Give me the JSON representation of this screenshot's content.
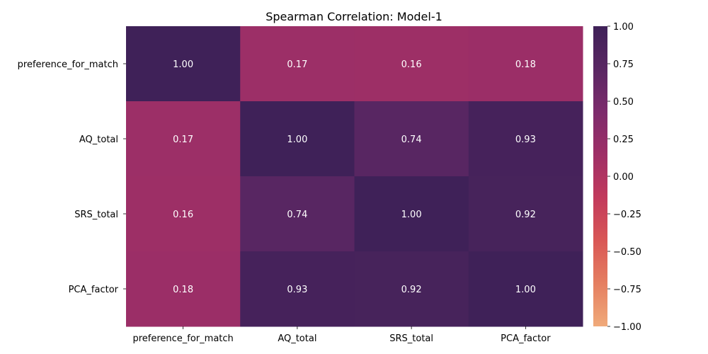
{
  "chart_data": {
    "type": "heatmap",
    "title": "Spearman Correlation: Model-1",
    "rows": [
      "preference_for_match",
      "AQ_total",
      "SRS_total",
      "PCA_factor"
    ],
    "columns": [
      "preference_for_match",
      "AQ_total",
      "SRS_total",
      "PCA_factor"
    ],
    "values": [
      [
        1.0,
        0.17,
        0.16,
        0.18
      ],
      [
        0.17,
        1.0,
        0.74,
        0.93
      ],
      [
        0.16,
        0.74,
        1.0,
        0.92
      ],
      [
        0.18,
        0.93,
        0.92,
        1.0
      ]
    ],
    "value_labels": [
      [
        "1.00",
        "0.17",
        "0.16",
        "0.18"
      ],
      [
        "0.17",
        "1.00",
        "0.74",
        "0.93"
      ],
      [
        "0.16",
        "0.74",
        "1.00",
        "0.92"
      ],
      [
        "0.18",
        "0.93",
        "0.92",
        "1.00"
      ]
    ],
    "colorbar": {
      "range": [
        -1.0,
        1.0
      ],
      "ticks": [
        "1.00",
        "0.75",
        "0.50",
        "0.25",
        "0.00",
        "−0.25",
        "−0.50",
        "−0.75",
        "−1.00"
      ],
      "tick_values": [
        1.0,
        0.75,
        0.5,
        0.25,
        0.0,
        -0.25,
        -0.5,
        -0.75,
        -1.0
      ],
      "colormap": "flare",
      "colors": [
        "#f0aa7a",
        "#e57f61",
        "#d95756",
        "#c23a5c",
        "#9f2f66",
        "#7d2b6c",
        "#5a2763",
        "#3f2158"
      ]
    }
  }
}
